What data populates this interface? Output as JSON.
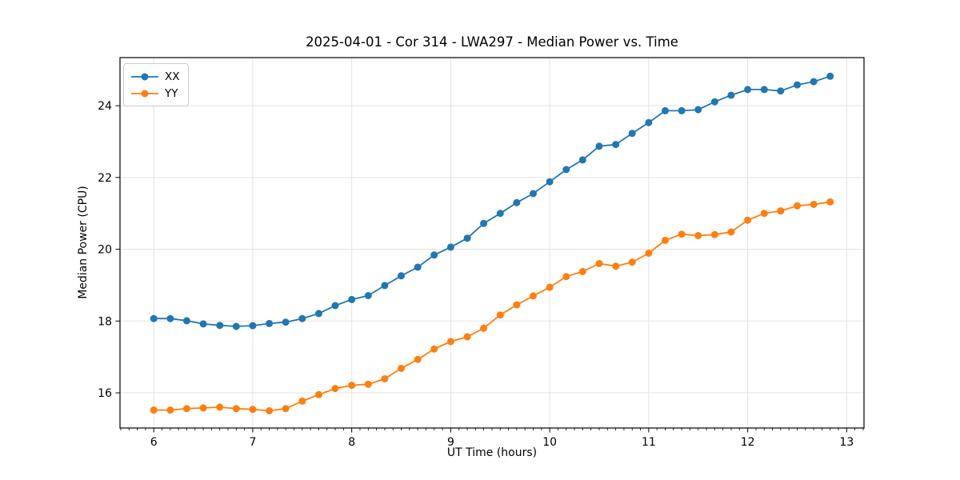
{
  "chart_data": {
    "type": "line",
    "title": "2025-04-01 - Cor 314 - LWA297 - Median Power vs. Time",
    "xlabel": "UT Time (hours)",
    "ylabel": "Median Power (CPU)",
    "x": [
      6.0,
      6.167,
      6.333,
      6.5,
      6.667,
      6.833,
      7.0,
      7.167,
      7.333,
      7.5,
      7.667,
      7.833,
      8.0,
      8.167,
      8.333,
      8.5,
      8.667,
      8.833,
      9.0,
      9.167,
      9.333,
      9.5,
      9.667,
      9.833,
      10.0,
      10.167,
      10.333,
      10.5,
      10.667,
      10.833,
      11.0,
      11.167,
      11.333,
      11.5,
      11.667,
      11.833,
      12.0,
      12.167,
      12.333,
      12.5,
      12.667,
      12.833
    ],
    "series": [
      {
        "name": "XX",
        "color": "#1f77b4",
        "values": [
          18.07,
          18.07,
          18.01,
          17.92,
          17.88,
          17.85,
          17.87,
          17.93,
          17.97,
          18.07,
          18.21,
          18.43,
          18.6,
          18.71,
          18.99,
          19.26,
          19.5,
          19.84,
          20.06,
          20.31,
          20.72,
          21.0,
          21.3,
          21.55,
          21.88,
          22.22,
          22.49,
          22.87,
          22.92,
          23.23,
          23.53,
          23.86,
          23.86,
          23.89,
          24.11,
          24.29,
          24.45,
          24.45,
          24.41,
          24.58,
          24.67,
          24.82
        ]
      },
      {
        "name": "YY",
        "color": "#ff7f0e",
        "values": [
          15.52,
          15.52,
          15.56,
          15.58,
          15.6,
          15.56,
          15.54,
          15.5,
          15.56,
          15.77,
          15.95,
          16.12,
          16.21,
          16.24,
          16.39,
          16.68,
          16.93,
          17.22,
          17.43,
          17.56,
          17.8,
          18.17,
          18.45,
          18.7,
          18.94,
          19.24,
          19.38,
          19.6,
          19.53,
          19.64,
          19.89,
          20.25,
          20.42,
          20.38,
          20.41,
          20.48,
          20.81,
          21.0,
          21.07,
          21.21,
          21.25,
          21.32
        ]
      }
    ],
    "xlim": [
      5.659,
      13.175
    ],
    "ylim": [
      15.02,
      25.34
    ],
    "xticks": [
      6,
      7,
      8,
      9,
      10,
      11,
      12,
      13
    ],
    "yticks": [
      16,
      18,
      20,
      22,
      24
    ],
    "x_minor_step": 0.083333,
    "grid": true,
    "grid_color": "#e3e3e3",
    "legend_position": "upper-left",
    "marker": "circle"
  }
}
